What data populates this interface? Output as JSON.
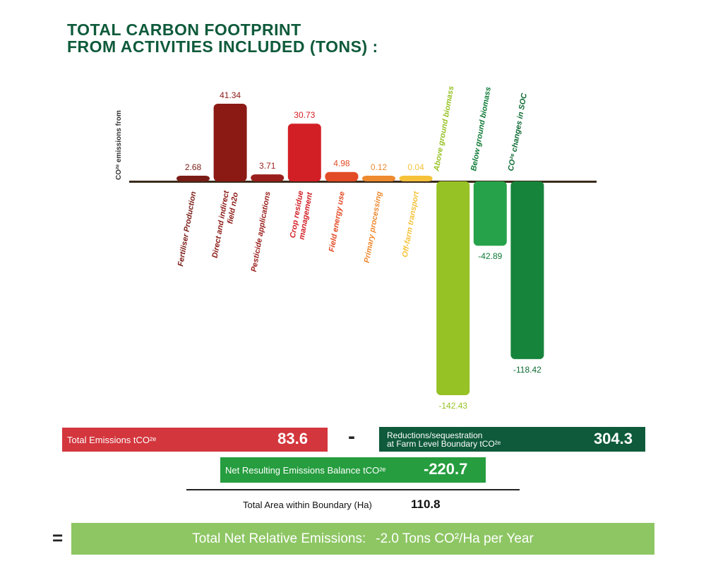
{
  "title": {
    "line1": "TOTAL CARBON FOOTPRINT",
    "line2": "FROM ACTIVITIES INCLUDED (TONS) :"
  },
  "chart_data": {
    "type": "bar",
    "ylabel": "CO²ᵉ emissions from",
    "categories": [
      "Fertiliser Production",
      "Direct and indirect field n2o",
      "Pesticide applications",
      "Crop residue management",
      "Field energy use",
      "Primary processing",
      "Off-farm transport",
      "Above ground biomass",
      "Below ground biomass",
      "CO²ᵉ changes in SOC"
    ],
    "values": [
      2.68,
      41.34,
      3.71,
      30.73,
      4.98,
      0.12,
      0.04,
      -142.43,
      -42.89,
      -118.42
    ],
    "value_labels": [
      "2.68",
      "41.34",
      "3.71",
      "30.73",
      "4.98",
      "0.12",
      "0.04",
      "-142.43",
      "-42.89",
      "-118.42"
    ],
    "colors": [
      "#7a1c16",
      "#8b1a15",
      "#9a1f1c",
      "#d21f25",
      "#e34b26",
      "#ee8a30",
      "#f5c23a",
      "#97c225",
      "#26a24a",
      "#16843b"
    ],
    "label_colors": [
      "#7a1c16",
      "#8b1a15",
      "#9a1f1c",
      "#d21f25",
      "#e34b26",
      "#ee8a30",
      "#f5c23a",
      "#97c225",
      "#0e7a37",
      "#0e6b34"
    ],
    "ylim": [
      -142.43,
      41.34
    ]
  },
  "summary": {
    "emissions_label": "Total Emissions tCO²ᵉ",
    "emissions_value": "83.6",
    "minus": "-",
    "reduction_label_line1": "Reductions/sequestration",
    "reduction_label_line2": "at Farm Level Boundary tCO²ᵉ",
    "reduction_value": "304.3",
    "net_label": "Net Resulting Emissions Balance tCO²ᵉ",
    "net_value": "-220.7",
    "area_label": "Total Area within Boundary (Ha)",
    "area_value": "110.8",
    "equals": "=",
    "result_label": "Total Net Relative Emissions:",
    "result_value": "-2.0 Tons CO²/Ha per Year"
  },
  "colors": {
    "title": "#0e5a3a",
    "emissions_box": "#d3363d",
    "reduction_box": "#0e5a3a",
    "net_box": "#269d3f",
    "result_box": "#8dc663",
    "baseline": "#3a2a1a"
  }
}
